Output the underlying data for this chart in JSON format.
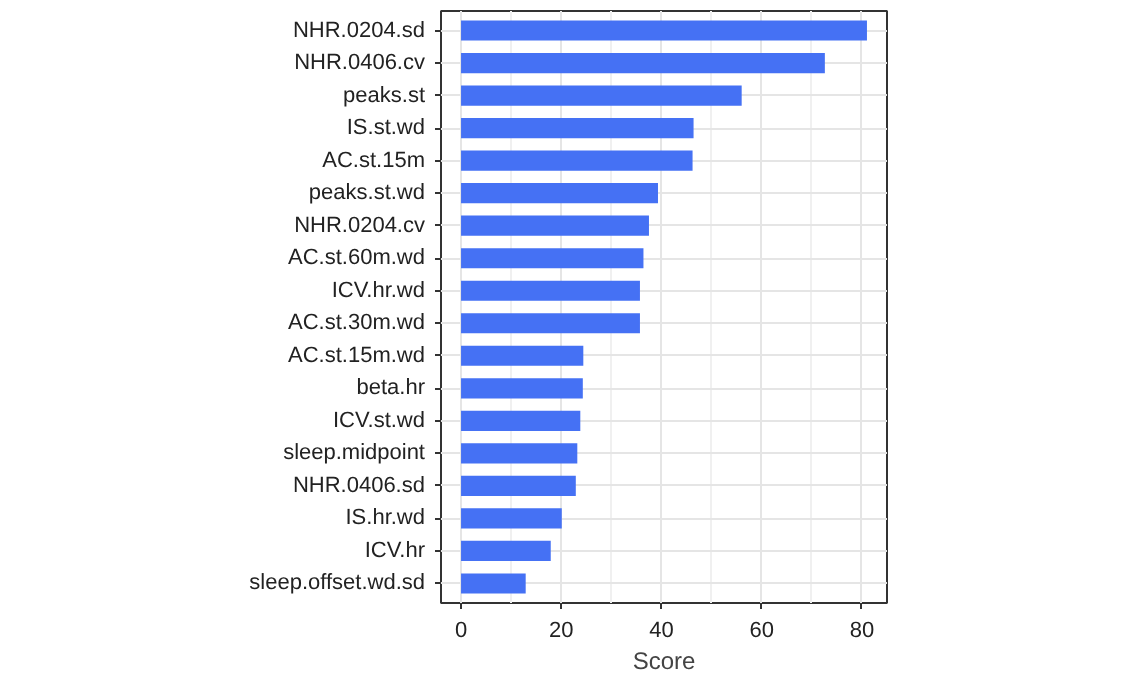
{
  "chart_data": {
    "type": "bar",
    "orientation": "horizontal",
    "xlabel": "Score",
    "categories": [
      "NHR.0204.sd",
      "NHR.0406.cv",
      "peaks.st",
      "IS.st.wd",
      "AC.st.15m",
      "peaks.st.wd",
      "NHR.0204.cv",
      "AC.st.60m.wd",
      "ICV.hr.wd",
      "AC.st.30m.wd",
      "AC.st.15m.wd",
      "beta.hr",
      "ICV.st.wd",
      "sleep.midpoint",
      "NHR.0406.sd",
      "IS.hr.wd",
      "ICV.hr",
      "sleep.offset.wd.sd"
    ],
    "values": [
      81,
      72.6,
      56,
      46.4,
      46.2,
      39.3,
      37.5,
      36.4,
      35.7,
      35.7,
      24.4,
      24.3,
      23.8,
      23.2,
      22.9,
      20.1,
      17.9,
      12.9
    ],
    "color": "#4571f4",
    "xlim": [
      -4,
      85
    ],
    "xticks": [
      0,
      20,
      40,
      60,
      80
    ],
    "grid": true
  }
}
